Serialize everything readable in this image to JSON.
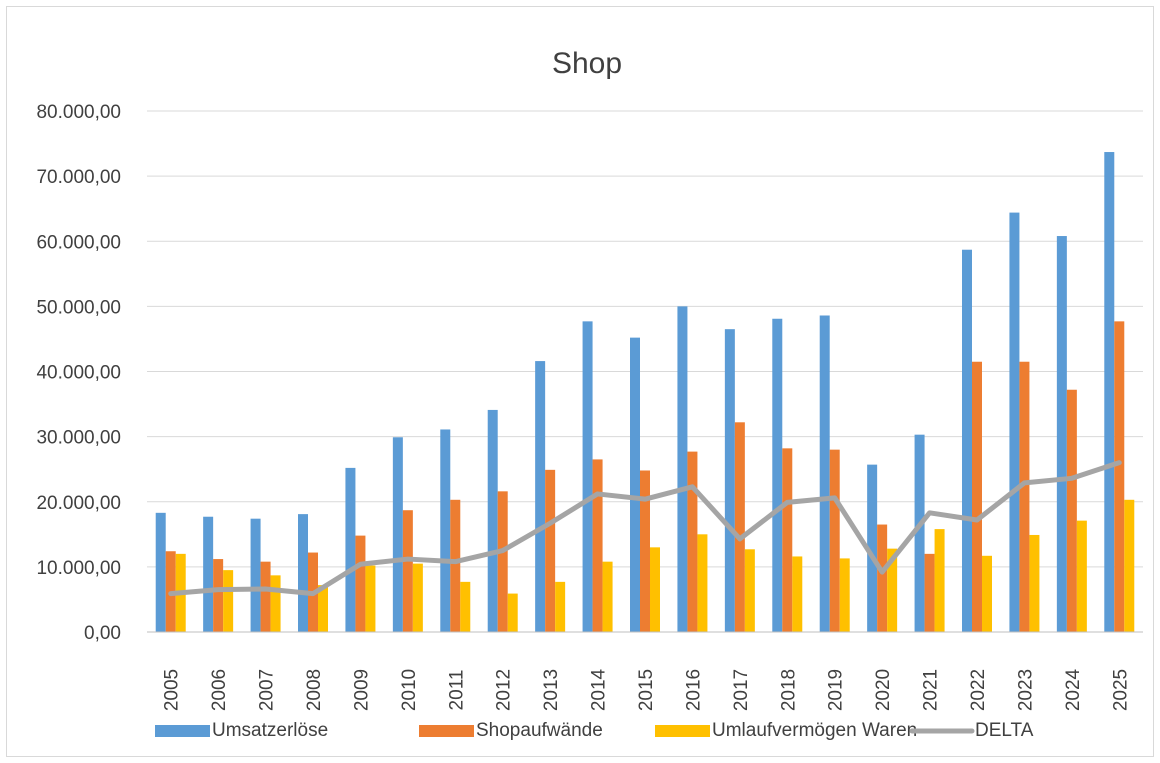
{
  "chart_data": {
    "type": "bar",
    "title": "Shop",
    "xlabel": "",
    "ylabel": "",
    "ylim": [
      0,
      80000
    ],
    "y_ticks": [
      "0,00",
      "10.000,00",
      "20.000,00",
      "30.000,00",
      "40.000,00",
      "50.000,00",
      "60.000,00",
      "70.000,00",
      "80.000,00"
    ],
    "grid": true,
    "legend_position": "bottom",
    "categories": [
      "2005",
      "2006",
      "2007",
      "2008",
      "2009",
      "2010",
      "2011",
      "2012",
      "2013",
      "2014",
      "2015",
      "2016",
      "2017",
      "2018",
      "2019",
      "2020",
      "2021",
      "2022",
      "2023",
      "2024",
      "2025"
    ],
    "series": [
      {
        "name": "Umsatzerlöse",
        "kind": "bar",
        "color": "#5b9bd5",
        "values": [
          18300,
          17700,
          17400,
          18100,
          25200,
          29900,
          31100,
          34100,
          41600,
          47700,
          45200,
          50000,
          46500,
          48100,
          48600,
          25700,
          30300,
          58700,
          64400,
          60800,
          73700
        ]
      },
      {
        "name": "Shopaufwände",
        "kind": "bar",
        "color": "#ed7d31",
        "values": [
          12400,
          11200,
          10800,
          12200,
          14800,
          18700,
          20300,
          21600,
          24900,
          26500,
          24800,
          27700,
          32200,
          28200,
          28000,
          16500,
          12000,
          41500,
          41500,
          37200,
          47700
        ]
      },
      {
        "name": "Umlaufvermögen Waren",
        "kind": "bar",
        "color": "#ffc000",
        "values": [
          12000,
          9500,
          8700,
          7200,
          10200,
          10500,
          7700,
          5900,
          7700,
          10800,
          13000,
          15000,
          12700,
          11600,
          11300,
          12800,
          15800,
          11700,
          14900,
          17100,
          20300
        ]
      },
      {
        "name": "DELTA",
        "kind": "line",
        "color": "#a5a5a5",
        "values": [
          5900,
          6500,
          6600,
          5900,
          10400,
          11200,
          10800,
          12500,
          16700,
          21200,
          20400,
          22300,
          14300,
          19900,
          20600,
          9200,
          18300,
          17200,
          22900,
          23600,
          26000
        ]
      }
    ]
  }
}
